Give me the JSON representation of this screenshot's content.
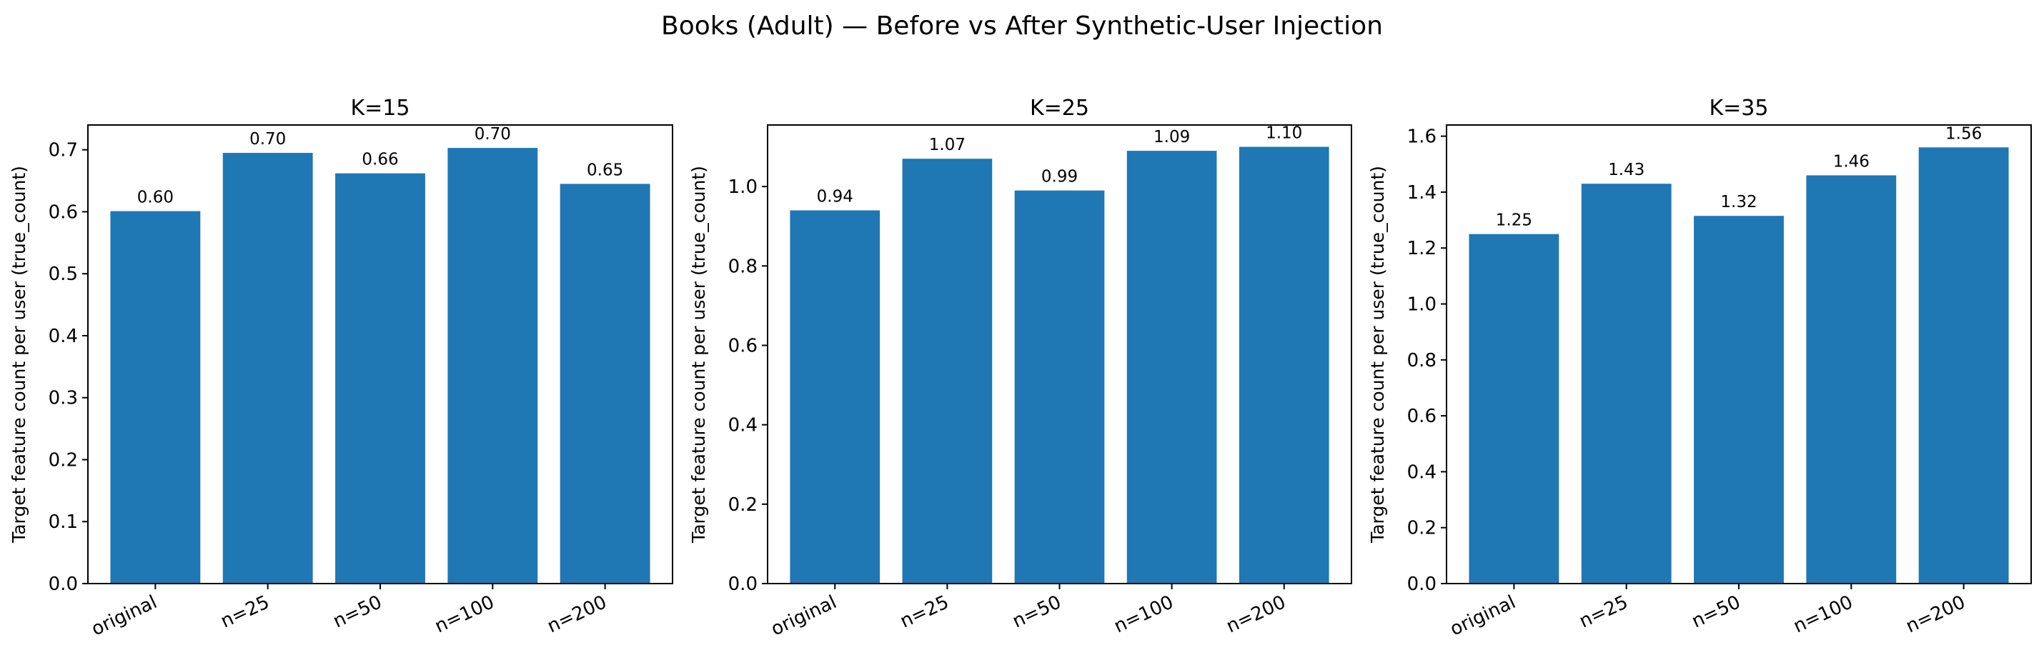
{
  "figure": {
    "title": "Books (Adult) — Before vs After Synthetic-User Injection"
  },
  "colors": {
    "bar": "#1f77b4",
    "axis": "#000000",
    "background": "#ffffff"
  },
  "chart_data": [
    {
      "type": "bar",
      "title": "K=15",
      "xlabel": "",
      "ylabel": "Target feature count per user (true_count)",
      "categories": [
        "original",
        "n=25",
        "n=50",
        "n=100",
        "n=200"
      ],
      "values": [
        0.601,
        0.695,
        0.662,
        0.703,
        0.645
      ],
      "value_labels": [
        "0.60",
        "0.70",
        "0.66",
        "0.70",
        "0.65"
      ],
      "ylim": [
        0,
        0.74
      ],
      "yticks": [
        0.0,
        0.1,
        0.2,
        0.3,
        0.4,
        0.5,
        0.6,
        0.7
      ],
      "ytick_labels": [
        "0.0",
        "0.1",
        "0.2",
        "0.3",
        "0.4",
        "0.5",
        "0.6",
        "0.7"
      ],
      "grid": false
    },
    {
      "type": "bar",
      "title": "K=25",
      "xlabel": "",
      "ylabel": "Target feature count per user (true_count)",
      "categories": [
        "original",
        "n=25",
        "n=50",
        "n=100",
        "n=200"
      ],
      "values": [
        0.94,
        1.07,
        0.99,
        1.09,
        1.1
      ],
      "value_labels": [
        "0.94",
        "1.07",
        "0.99",
        "1.09",
        "1.10"
      ],
      "ylim": [
        0,
        1.155
      ],
      "yticks": [
        0.0,
        0.2,
        0.4,
        0.6,
        0.8,
        1.0
      ],
      "ytick_labels": [
        "0.0",
        "0.2",
        "0.4",
        "0.6",
        "0.8",
        "1.0"
      ],
      "grid": false
    },
    {
      "type": "bar",
      "title": "K=35",
      "xlabel": "",
      "ylabel": "Target feature count per user (true_count)",
      "categories": [
        "original",
        "n=25",
        "n=50",
        "n=100",
        "n=200"
      ],
      "values": [
        1.25,
        1.43,
        1.315,
        1.46,
        1.56
      ],
      "value_labels": [
        "1.25",
        "1.43",
        "1.32",
        "1.46",
        "1.56"
      ],
      "ylim": [
        0,
        1.64
      ],
      "yticks": [
        0.0,
        0.2,
        0.4,
        0.6,
        0.8,
        1.0,
        1.2,
        1.4,
        1.6
      ],
      "ytick_labels": [
        "0.0",
        "0.2",
        "0.4",
        "0.6",
        "0.8",
        "1.0",
        "1.2",
        "1.4",
        "1.6"
      ],
      "grid": false
    }
  ]
}
